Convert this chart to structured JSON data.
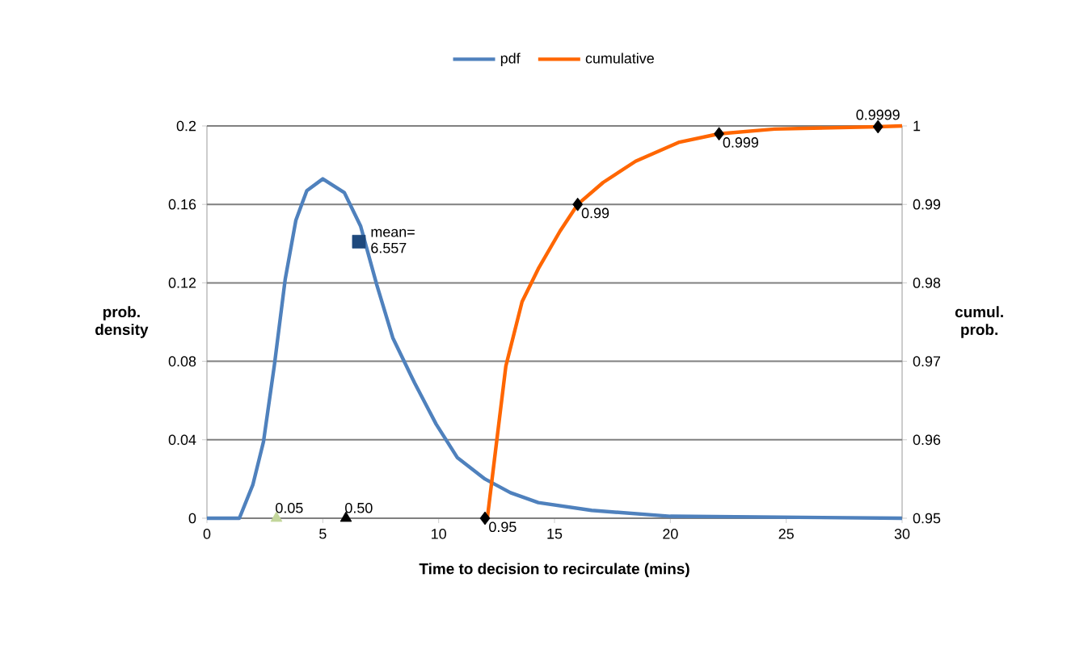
{
  "chart_data": {
    "type": "line",
    "xlabel": "Time to decision to recirculate (mins)",
    "ylabel": "prob. density",
    "y2label": "cumul. prob.",
    "xlim": [
      0,
      30
    ],
    "xticks": [
      0,
      5,
      10,
      15,
      20,
      25,
      30
    ],
    "ylim": [
      0,
      0.2
    ],
    "yticks": [
      0,
      0.04,
      0.08,
      0.12,
      0.16,
      0.2
    ],
    "y2lim": [
      0.95,
      1
    ],
    "y2ticks": [
      0.95,
      0.96,
      0.97,
      0.98,
      0.99,
      1
    ],
    "grid": "y",
    "legend": "top",
    "line_style": "solid",
    "series": [
      {
        "name": "pdf",
        "color": "#4f81bd",
        "x": [
          0,
          1.4,
          1.98,
          2.44,
          2.91,
          3.38,
          3.84,
          4.31,
          5.0,
          5.93,
          6.63,
          7.33,
          8.02,
          8.96,
          9.89,
          10.8,
          12.0,
          13.1,
          14.3,
          16.6,
          20,
          30
        ],
        "values": [
          0,
          0,
          0.017,
          0.039,
          0.078,
          0.122,
          0.152,
          0.167,
          0.173,
          0.166,
          0.149,
          0.119,
          0.092,
          0.069,
          0.048,
          0.031,
          0.02,
          0.013,
          0.008,
          0.004,
          0.001,
          0
        ]
      },
      {
        "name": "cumulative",
        "axis": "y2",
        "color": "#ff6600",
        "x": [
          12.0,
          12.1,
          12.45,
          12.9,
          13.6,
          14.3,
          15.24,
          16.0,
          17.1,
          18.5,
          20.35,
          22.1,
          24.5,
          28.96,
          30
        ],
        "values": [
          0.95,
          0.95,
          0.9585,
          0.9694,
          0.9776,
          0.9818,
          0.9866,
          0.99,
          0.9928,
          0.9955,
          0.9979,
          0.999,
          0.9996,
          0.9999,
          1
        ]
      },
      {
        "type": "scatter",
        "marker": "triangle",
        "x": [
          3.0,
          6.0
        ],
        "values": [
          0,
          0
        ],
        "colors": [
          "#c3d69b",
          "#000000"
        ]
      },
      {
        "type": "scatter",
        "marker": "square",
        "color": "#1f497d",
        "x": [
          6.557
        ],
        "values": [
          0.141
        ]
      },
      {
        "type": "scatter",
        "marker": "diamond",
        "axis": "y2",
        "color": "#000000",
        "x": [
          12.0,
          16.0,
          22.1,
          28.96
        ],
        "values": [
          0.95,
          0.99,
          0.999,
          0.9999
        ],
        "value_labels": [
          "0.95",
          "0.99",
          "0.999",
          "0.9999"
        ]
      }
    ],
    "annotations": [
      {
        "text": "0.05",
        "x": 3.0,
        "y": 0
      },
      {
        "text": "0.50",
        "x": 6.0,
        "y": 0
      },
      {
        "text": "mean= 6.557",
        "x": 6.557,
        "y": 0.141
      }
    ]
  }
}
